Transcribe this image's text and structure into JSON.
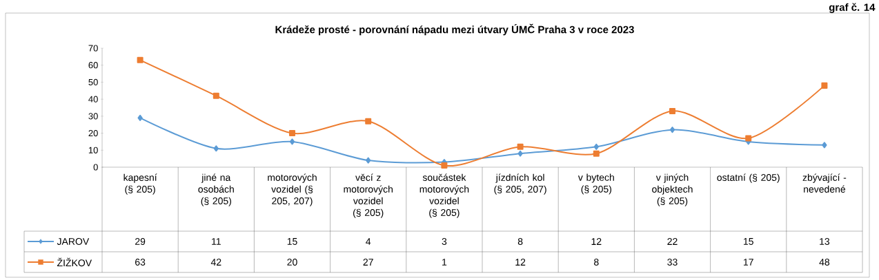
{
  "chart_data": {
    "type": "line",
    "title": "Krádeže prosté - porovnání nápadu mezi útvary ÚMČ Praha 3 v roce 2023",
    "annotations": [
      "graf č. 14"
    ],
    "categories": [
      "kapesní (§ 205)",
      "jiné na osobách (§ 205)",
      "motorových vozidel (§ 205, 207)",
      "věcí z motorových vozidel (§ 205)",
      "součástek motorových vozidel (§ 205)",
      "jízdních kol (§ 205, 207)",
      "v bytech (§ 205)",
      "v jiných objektech (§ 205)",
      "ostatní (§ 205)",
      "zbývající - nevedené"
    ],
    "series": [
      {
        "name": "JAROV",
        "color": "#5b9bd5",
        "marker": "diamond",
        "values": [
          29,
          11,
          15,
          4,
          3,
          8,
          12,
          22,
          15,
          13
        ]
      },
      {
        "name": "ŽIŽKOV",
        "color": "#ed7d31",
        "marker": "square",
        "values": [
          63,
          42,
          20,
          27,
          1,
          12,
          8,
          33,
          17,
          48
        ]
      }
    ],
    "ylim": [
      0,
      70
    ],
    "yticks": [
      0,
      10,
      20,
      30,
      40,
      50,
      60,
      70
    ],
    "data_labels": true,
    "legend": "bottom",
    "line_style": "solid"
  }
}
